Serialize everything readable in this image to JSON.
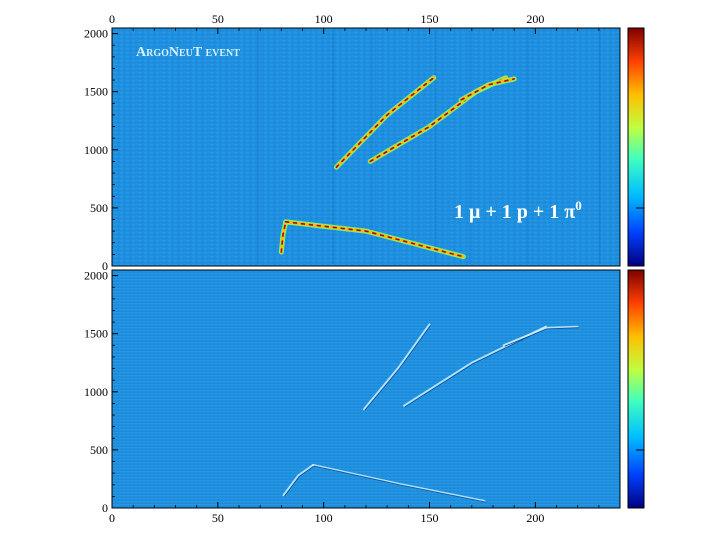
{
  "chart_data": [
    {
      "type": "heatmap",
      "panel": "top",
      "annotation_label": "ArgoNeuT event",
      "formula": {
        "prefix": "1 μ + 1 p + 1 π",
        "superscript": "0"
      },
      "xlim": [
        0,
        240
      ],
      "ylim": [
        0,
        2048
      ],
      "x_ticks": [
        "0",
        "50",
        "100",
        "150",
        "200"
      ],
      "y_ticks": [
        "0",
        "500",
        "1000",
        "1500",
        "2000"
      ],
      "tracks": [
        {
          "points": [
            [
              80,
              120
            ],
            [
              80.8,
              270
            ],
            [
              82,
              370
            ]
          ]
        },
        {
          "points": [
            [
              82,
              380
            ],
            [
              120,
              300
            ],
            [
              166,
              80
            ]
          ]
        },
        {
          "points": [
            [
              106,
              850
            ],
            [
              130,
              1300
            ],
            [
              152,
              1620
            ]
          ]
        },
        {
          "points": [
            [
              122,
              900
            ],
            [
              150,
              1200
            ],
            [
              172,
              1500
            ],
            [
              186,
              1620
            ]
          ]
        },
        {
          "points": [
            [
              165,
              1430
            ],
            [
              178,
              1560
            ],
            [
              190,
              1610
            ]
          ]
        }
      ]
    },
    {
      "type": "heatmap",
      "panel": "bottom",
      "xlim": [
        0,
        240
      ],
      "ylim": [
        0,
        2048
      ],
      "x_ticks": [
        "0",
        "50",
        "100",
        "150",
        "200"
      ],
      "y_ticks": [
        "0",
        "500",
        "1000",
        "1500",
        "2000"
      ],
      "tracks": [
        {
          "points": [
            [
              81,
              110
            ],
            [
              88,
              280
            ],
            [
              95,
              370
            ]
          ]
        },
        {
          "points": [
            [
              95,
              370
            ],
            [
              135,
              210
            ],
            [
              176,
              60
            ]
          ]
        },
        {
          "points": [
            [
              119,
              850
            ],
            [
              135,
              1200
            ],
            [
              150,
              1580
            ]
          ]
        },
        {
          "points": [
            [
              138,
              880
            ],
            [
              170,
              1250
            ],
            [
              205,
              1560
            ]
          ]
        },
        {
          "points": [
            [
              185,
              1400
            ],
            [
              205,
              1550
            ],
            [
              220,
              1560
            ]
          ]
        }
      ]
    }
  ],
  "colors": {
    "background": "#1e90df",
    "noise_light": "#3aa8ea",
    "noise_dark": "#0f6fc0",
    "colorbar": [
      "#00007f",
      "#0040ff",
      "#00bfff",
      "#40ffbf",
      "#bfff40",
      "#ffbf00",
      "#ff4000",
      "#7f0000"
    ]
  }
}
